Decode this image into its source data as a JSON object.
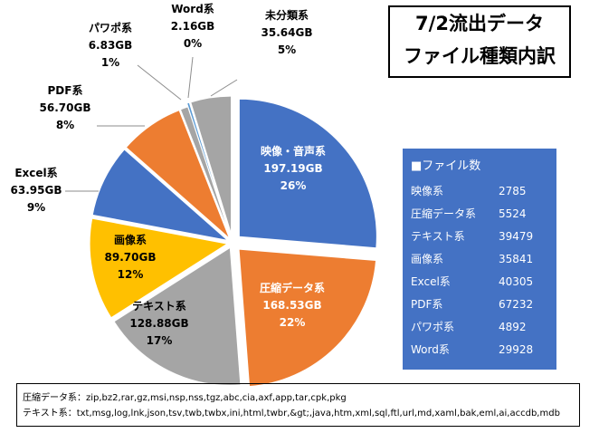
{
  "chart_data": {
    "type": "pie",
    "title": "7/2流出データ ファイル種類内訳",
    "title_lines": [
      "7/2流出データ",
      "ファイル種類内訳"
    ],
    "unit": "GB",
    "slices": [
      {
        "name": "映像・音声系",
        "value": 197.19,
        "value_label": "197.19GB",
        "percent": "26%",
        "color": "#4472c4",
        "label_color": "#ffffff"
      },
      {
        "name": "圧縮データ系",
        "value": 168.53,
        "value_label": "168.53GB",
        "percent": "22%",
        "color": "#ed7d31",
        "label_color": "#ffffff"
      },
      {
        "name": "テキスト系",
        "value": 128.88,
        "value_label": "128.88GB",
        "percent": "17%",
        "color": "#a5a5a5",
        "label_color": "#000000"
      },
      {
        "name": "画像系",
        "value": 89.7,
        "value_label": "89.70GB",
        "percent": "12%",
        "color": "#ffc000",
        "label_color": "#000000"
      },
      {
        "name": "Excel系",
        "value": 63.95,
        "value_label": "63.95GB",
        "percent": "9%",
        "color": "#4472c4",
        "label_color": "#000000"
      },
      {
        "name": "PDF系",
        "value": 56.7,
        "value_label": "56.70GB",
        "percent": "8%",
        "color": "#ed7d31",
        "label_color": "#000000"
      },
      {
        "name": "パワポ系",
        "value": 6.83,
        "value_label": "6.83GB",
        "percent": "1%",
        "color": "#a5a5a5",
        "label_color": "#000000"
      },
      {
        "name": "Word系",
        "value": 2.16,
        "value_label": "2.16GB",
        "percent": "0%",
        "color": "#5b9bd5",
        "label_color": "#000000"
      },
      {
        "name": "未分類系",
        "value": 35.64,
        "value_label": "35.64GB",
        "percent": "5%",
        "color": "#a5a5a5",
        "label_color": "#000000"
      }
    ]
  },
  "file_count_table": {
    "header": "■ファイル数",
    "rows": [
      {
        "name": "映像系",
        "count": "2785"
      },
      {
        "name": "圧縮データ系",
        "count": "5524"
      },
      {
        "name": "テキスト系",
        "count": "39479"
      },
      {
        "name": "画像系",
        "count": "35841"
      },
      {
        "name": "Excel系",
        "count": "40305"
      },
      {
        "name": "PDF系",
        "count": "67232"
      },
      {
        "name": "パワポ系",
        "count": "4892"
      },
      {
        "name": "Word系",
        "count": "29928"
      }
    ]
  },
  "notes": {
    "compressed": "圧縮データ系：zip,bz2,rar,gz,msi,nsp,nss,tgz,abc,cia,axf,app,tar,cpk,pkg",
    "text": "テキスト系：txt,msg,log,lnk,json,tsv,twb,twbx,ini,html,twbr,&gt;,java,htm,xml,sql,ftl,url,md,xaml,bak,eml,ai,accdb,mdb"
  }
}
